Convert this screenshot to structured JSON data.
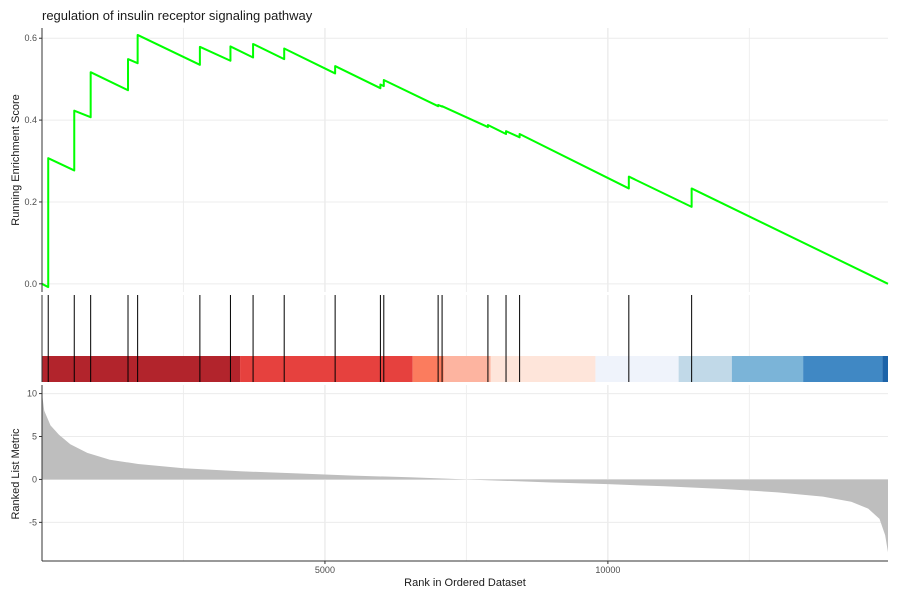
{
  "chart_data": {
    "type": "line",
    "title": "regulation of insulin receptor signaling pathway",
    "xlabel": "Rank in Ordered Dataset",
    "x_ticks": [
      5000,
      10000
    ],
    "xlim": [
      0,
      14950
    ],
    "grid": true,
    "panels": {
      "enrichment": {
        "ylabel": "Running Enrichment Score",
        "ylim": [
          -0.02,
          0.625
        ],
        "y_ticks": [
          0.0,
          0.2,
          0.4,
          0.6
        ],
        "y_tick_labels": [
          "0.0",
          "0.2",
          "0.4",
          "0.6"
        ],
        "line_color": "#00ff00",
        "hits": [
          110,
          570,
          860,
          1520,
          1690,
          2790,
          3330,
          3730,
          4280,
          5180,
          5980,
          6040,
          7000,
          7070,
          7880,
          8200,
          8440,
          10370,
          11480
        ],
        "points": [
          [
            0,
            0.0
          ],
          [
            110,
            -0.008
          ],
          [
            110,
            0.307
          ],
          [
            570,
            0.277
          ],
          [
            570,
            0.423
          ],
          [
            860,
            0.407
          ],
          [
            860,
            0.517
          ],
          [
            1520,
            0.473
          ],
          [
            1520,
            0.549
          ],
          [
            1690,
            0.539
          ],
          [
            1690,
            0.608
          ],
          [
            2790,
            0.535
          ],
          [
            2790,
            0.579
          ],
          [
            3330,
            0.545
          ],
          [
            3330,
            0.58
          ],
          [
            3730,
            0.553
          ],
          [
            3730,
            0.586
          ],
          [
            4280,
            0.549
          ],
          [
            4280,
            0.575
          ],
          [
            5180,
            0.514
          ],
          [
            5180,
            0.532
          ],
          [
            5980,
            0.478
          ],
          [
            5980,
            0.487
          ],
          [
            6040,
            0.483
          ],
          [
            6040,
            0.498
          ],
          [
            7000,
            0.434
          ],
          [
            7000,
            0.437
          ],
          [
            7070,
            0.433
          ],
          [
            7070,
            0.434
          ],
          [
            7880,
            0.383
          ],
          [
            7880,
            0.388
          ],
          [
            8200,
            0.366
          ],
          [
            8200,
            0.373
          ],
          [
            8440,
            0.358
          ],
          [
            8440,
            0.366
          ],
          [
            10370,
            0.233
          ],
          [
            10370,
            0.262
          ],
          [
            11480,
            0.188
          ],
          [
            11480,
            0.233
          ],
          [
            14950,
            0.0
          ]
        ]
      },
      "ranked_metric": {
        "ylabel": "Ranked List Metric",
        "ylim": [
          -9.5,
          11
        ],
        "y_ticks": [
          10,
          5,
          0,
          -5
        ],
        "y_tick_labels": [
          "10",
          "5",
          "0",
          "-5"
        ],
        "fill_color": "#bebebe",
        "points": [
          [
            0,
            10
          ],
          [
            40,
            8
          ],
          [
            150,
            6.3
          ],
          [
            300,
            5.2
          ],
          [
            500,
            4.1
          ],
          [
            800,
            3.1
          ],
          [
            1200,
            2.3
          ],
          [
            1700,
            1.8
          ],
          [
            2500,
            1.3
          ],
          [
            3500,
            0.95
          ],
          [
            4500,
            0.7
          ],
          [
            5500,
            0.45
          ],
          [
            6500,
            0.25
          ],
          [
            7200,
            0.08
          ],
          [
            7500,
            0.0
          ],
          [
            8000,
            -0.12
          ],
          [
            9000,
            -0.35
          ],
          [
            10000,
            -0.55
          ],
          [
            11000,
            -0.8
          ],
          [
            12000,
            -1.1
          ],
          [
            13000,
            -1.5
          ],
          [
            13800,
            -2.0
          ],
          [
            14300,
            -2.6
          ],
          [
            14600,
            -3.4
          ],
          [
            14800,
            -4.6
          ],
          [
            14900,
            -6.5
          ],
          [
            14950,
            -8.5
          ]
        ]
      },
      "color_bar": {
        "segments": [
          {
            "start": 0,
            "end": 3500,
            "color": "#b2242c"
          },
          {
            "start": 3500,
            "end": 6550,
            "color": "#e6413e"
          },
          {
            "start": 6550,
            "end": 7100,
            "color": "#fb7c5e"
          },
          {
            "start": 7100,
            "end": 7930,
            "color": "#fdb4a0"
          },
          {
            "start": 7930,
            "end": 9780,
            "color": "#fee5da"
          },
          {
            "start": 9780,
            "end": 11250,
            "color": "#eff3fb"
          },
          {
            "start": 11250,
            "end": 12190,
            "color": "#c1d9e8"
          },
          {
            "start": 12190,
            "end": 13450,
            "color": "#7bb4d8"
          },
          {
            "start": 13450,
            "end": 14850,
            "color": "#4088c4"
          },
          {
            "start": 14850,
            "end": 14950,
            "color": "#1c63a8"
          }
        ]
      }
    }
  }
}
